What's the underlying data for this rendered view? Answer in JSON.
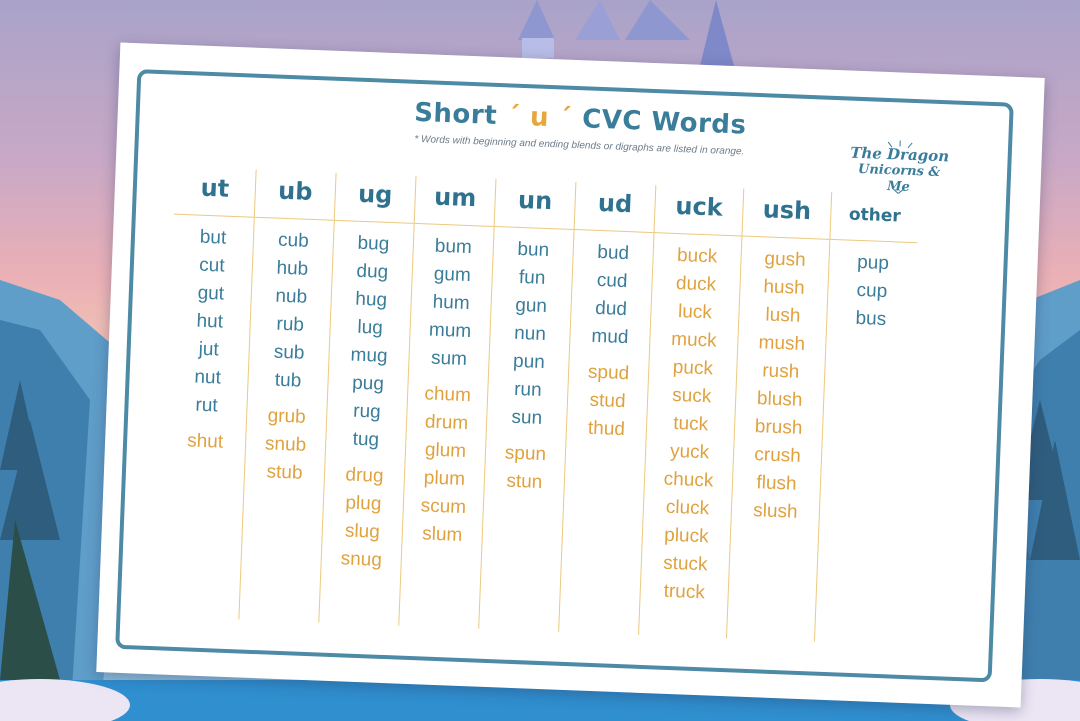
{
  "worksheet": {
    "title_before": "Short",
    "title_vowel": "u",
    "title_after": "CVC Words",
    "subtitle": "* Words with beginning and ending blends or digraphs are listed in orange.",
    "logo": {
      "line1": "The Dragon",
      "line2": "Unicorns & Me"
    },
    "colors": {
      "blue": "#3a7d9a",
      "orange": "#e0a23e",
      "frame": "#4d8aa5",
      "rule": "#ecc97e"
    },
    "columns": [
      {
        "heading": "ut",
        "blue": [
          "but",
          "cut",
          "gut",
          "hut",
          "jut",
          "nut",
          "rut"
        ],
        "orange": [
          "shut"
        ]
      },
      {
        "heading": "ub",
        "blue": [
          "cub",
          "hub",
          "nub",
          "rub",
          "sub",
          "tub"
        ],
        "orange": [
          "grub",
          "snub",
          "stub"
        ]
      },
      {
        "heading": "ug",
        "blue": [
          "bug",
          "dug",
          "hug",
          "lug",
          "mug",
          "pug",
          "rug",
          "tug"
        ],
        "orange": [
          "drug",
          "plug",
          "slug",
          "snug"
        ]
      },
      {
        "heading": "um",
        "blue": [
          "bum",
          "gum",
          "hum",
          "mum",
          "sum"
        ],
        "orange": [
          "chum",
          "drum",
          "glum",
          "plum",
          "scum",
          "slum"
        ]
      },
      {
        "heading": "un",
        "blue": [
          "bun",
          "fun",
          "gun",
          "nun",
          "pun",
          "run",
          "sun"
        ],
        "orange": [
          "spun",
          "stun"
        ]
      },
      {
        "heading": "ud",
        "blue": [
          "bud",
          "cud",
          "dud",
          "mud"
        ],
        "orange": [
          "spud",
          "stud",
          "thud"
        ]
      },
      {
        "heading": "uck",
        "blue": [],
        "orange": [
          "buck",
          "duck",
          "luck",
          "muck",
          "puck",
          "suck",
          "tuck",
          "yuck",
          "chuck",
          "cluck",
          "pluck",
          "stuck",
          "truck"
        ]
      },
      {
        "heading": "ush",
        "blue": [],
        "orange": [
          "gush",
          "hush",
          "lush",
          "mush",
          "rush",
          "blush",
          "brush",
          "crush",
          "flush",
          "slush"
        ]
      },
      {
        "heading": "other",
        "blue": [
          "pup",
          "cup",
          "bus"
        ],
        "orange": []
      }
    ]
  }
}
